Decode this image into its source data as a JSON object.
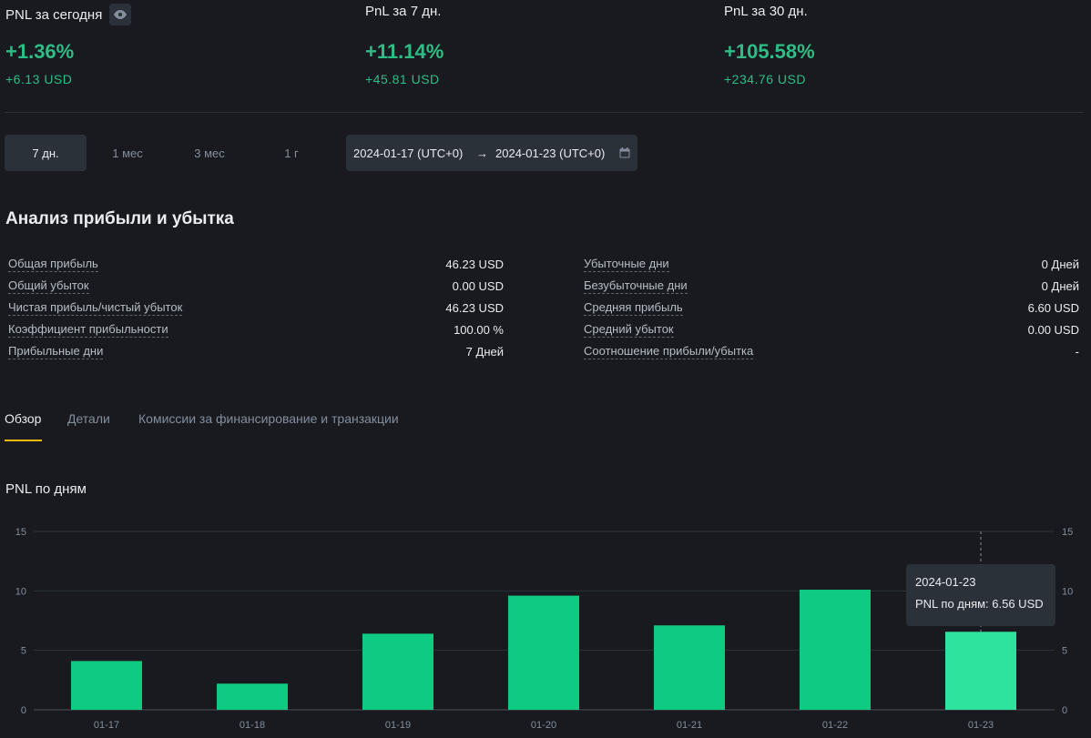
{
  "pnl_summary": [
    {
      "label": "PNL за сегодня",
      "percent": "+1.36%",
      "usd": "+6.13 USD",
      "has_eye": true
    },
    {
      "label": "PnL за 7 дн.",
      "percent": "+11.14%",
      "usd": "+45.81 USD",
      "has_eye": false
    },
    {
      "label": "PnL за 30 дн.",
      "percent": "+105.58%",
      "usd": "+234.76 USD",
      "has_eye": false
    }
  ],
  "range_buttons": [
    {
      "label": "7 дн.",
      "active": true
    },
    {
      "label": "1 мес",
      "active": false
    },
    {
      "label": "3 мес",
      "active": false
    },
    {
      "label": "1 г",
      "active": false
    }
  ],
  "date_range": {
    "start": "2024-01-17 (UTC+0)",
    "arrow": "→",
    "end": "2024-01-23 (UTC+0)",
    "icon": "calendar-icon"
  },
  "analysis": {
    "title": "Анализ прибыли и убытка",
    "left": [
      {
        "label": "Общая прибыль",
        "value": "46.23 USD"
      },
      {
        "label": "Общий убыток",
        "value": "0.00 USD"
      },
      {
        "label": "Чистая прибыль/чистый убыток",
        "value": "46.23 USD"
      },
      {
        "label": "Коэффициент прибыльности",
        "value": "100.00 %"
      },
      {
        "label": "Прибыльные дни",
        "value": "7 Дней"
      }
    ],
    "right": [
      {
        "label": "Убыточные дни",
        "value": "0 Дней"
      },
      {
        "label": "Безубыточные дни",
        "value": "0 Дней"
      },
      {
        "label": "Средняя прибыль",
        "value": "6.60 USD"
      },
      {
        "label": "Средний убыток",
        "value": "0.00 USD"
      },
      {
        "label": "Соотношение прибыли/убытка",
        "value": "-"
      }
    ]
  },
  "tabs": [
    {
      "label": "Обзор",
      "active": true
    },
    {
      "label": "Детали",
      "active": false
    },
    {
      "label": "Комиссии за финансирование и транзакции",
      "active": false
    }
  ],
  "chart_title": "PNL по дням",
  "tooltip": {
    "date": "2024-01-23",
    "line": "PNL по дням: 6.56 USD"
  },
  "colors": {
    "positive": "#2ebd85",
    "bar": "#0ecb81",
    "bar_hover": "#2ee39d",
    "accent": "#f0b90b"
  },
  "chart_data": {
    "type": "bar",
    "categories": [
      "01-17",
      "01-18",
      "01-19",
      "01-20",
      "01-21",
      "01-22",
      "01-23"
    ],
    "values": [
      4.1,
      2.2,
      6.4,
      9.6,
      7.1,
      10.1,
      6.56
    ],
    "ylim": [
      0,
      15
    ],
    "yticks": [
      0,
      5,
      10,
      15
    ],
    "grid": true,
    "highlighted_index": 6,
    "title": "",
    "xlabel": "",
    "ylabel": ""
  }
}
